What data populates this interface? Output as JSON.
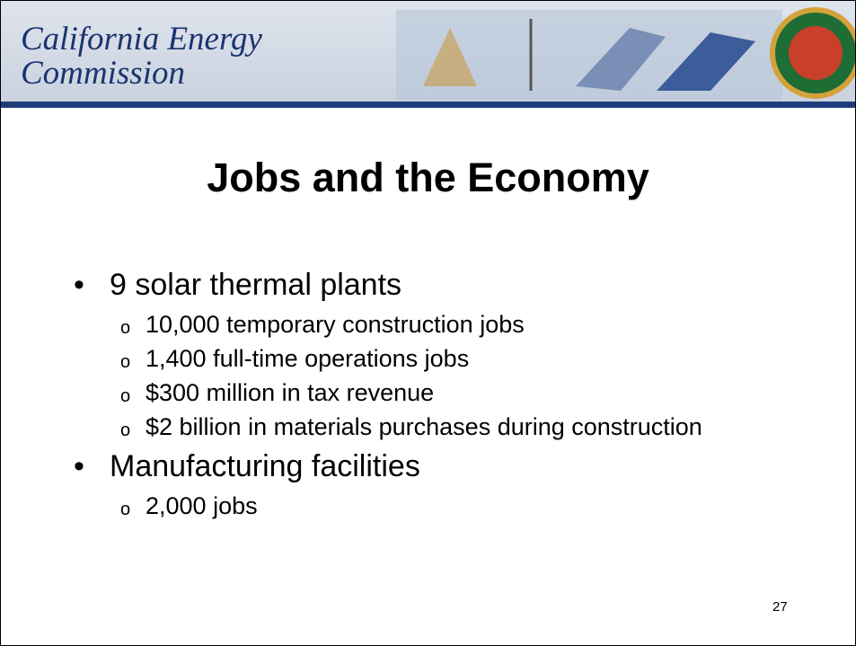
{
  "header": {
    "org_name": [
      "California Energy",
      "Commission"
    ]
  },
  "slide": {
    "title": "Jobs and the Economy",
    "bullets": [
      {
        "text": "9 solar thermal plants",
        "sub": [
          "10,000 temporary construction jobs",
          "1,400 full-time operations jobs",
          "$300 million in tax revenue",
          "$2 billion in materials purchases during construction"
        ]
      },
      {
        "text": "Manufacturing facilities",
        "sub": [
          "2,000 jobs"
        ]
      }
    ],
    "page_number": "27"
  }
}
